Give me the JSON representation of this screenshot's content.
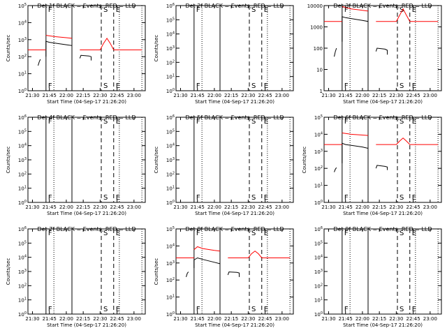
{
  "colors": {
    "events": "#000000",
    "lld": "#ff0000",
    "axes": "#000000",
    "background": "#ffffff"
  },
  "chart_data": [
    {
      "type": "line",
      "title": "Det 1f BLACK = Events, RED = LLD",
      "xlabel": "Start Time (04-Sep-17 21:26:20)",
      "ylabel": "Counts/sec",
      "xlim": [
        "21:26",
        "23:10"
      ],
      "x_ticks": [
        "21:30",
        "21:45",
        "22:00",
        "22:15",
        "22:30",
        "22:45",
        "23:00"
      ],
      "y_scale": "log",
      "ylim": [
        1,
        100000
      ],
      "y_ticks": [
        "10^0",
        "10^1",
        "10^2",
        "10^3",
        "10^4",
        "10^5"
      ],
      "markers": [
        {
          "label": "F",
          "x": "21:42"
        },
        {
          "label": "S",
          "x": "22:31"
        },
        {
          "label": "E",
          "x": "22:42"
        }
      ],
      "series": [
        {
          "name": "Events",
          "color": "#000000",
          "segments": [
            [
              [
                "21:35",
                30
              ],
              [
                "21:36",
                50
              ],
              [
                "21:37",
                70
              ]
            ],
            [
              [
                "21:42",
                100
              ],
              [
                "21:42",
                800
              ],
              [
                "21:45",
                700
              ],
              [
                "22:00",
                500
              ],
              [
                "22:05",
                450
              ],
              [
                "22:05",
                200
              ]
            ],
            [
              [
                "22:12",
                80
              ],
              [
                "22:13",
                120
              ],
              [
                "22:20",
                110
              ],
              [
                "22:22",
                100
              ],
              [
                "22:22",
                60
              ]
            ]
          ]
        },
        {
          "name": "LLD",
          "color": "#ff0000",
          "segments": [
            [
              [
                "21:26",
                250
              ],
              [
                "21:42",
                250
              ]
            ],
            [
              [
                "21:42",
                1800
              ],
              [
                "21:50",
                1500
              ],
              [
                "22:00",
                1300
              ],
              [
                "22:05",
                1200
              ]
            ],
            [
              [
                "22:12",
                250
              ],
              [
                "22:30",
                250
              ],
              [
                "22:33",
                600
              ],
              [
                "22:36",
                1200
              ],
              [
                "22:39",
                600
              ],
              [
                "22:42",
                250
              ],
              [
                "23:07",
                250
              ]
            ]
          ]
        }
      ]
    },
    {
      "type": "line",
      "title": "Det 2f BLACK = Events, RED = LLD",
      "xlabel": "Start Time (04-Sep-17 21:26:20)",
      "ylabel": "Counts/sec",
      "xlim": [
        "21:26",
        "23:10"
      ],
      "x_ticks": [
        "21:30",
        "21:45",
        "22:00",
        "22:15",
        "22:30",
        "22:45",
        "23:00"
      ],
      "y_scale": "log",
      "ylim": [
        1,
        1000000
      ],
      "y_ticks": [
        "10^0",
        "10^1",
        "10^2",
        "10^3",
        "10^4",
        "10^5",
        "10^6"
      ],
      "markers": [
        {
          "label": "F",
          "x": "21:42"
        },
        {
          "label": "S",
          "x": "22:31"
        },
        {
          "label": "E",
          "x": "22:42"
        }
      ],
      "series": []
    },
    {
      "type": "line",
      "title": "Det 3f BLACK = Events, RED = LLD",
      "xlabel": "Start Time (04-Sep-17 21:26:20)",
      "ylabel": "",
      "xlim": [
        "21:26",
        "23:10"
      ],
      "x_ticks": [
        "21:30",
        "21:45",
        "22:00",
        "22:15",
        "22:30",
        "22:45",
        "23:00"
      ],
      "y_scale": "log",
      "ylim": [
        1,
        10000
      ],
      "y_ticks": [
        "1",
        "10",
        "100",
        "1000",
        "10000"
      ],
      "markers": [
        {
          "label": "F",
          "x": "21:42"
        },
        {
          "label": "S",
          "x": "22:31"
        },
        {
          "label": "E",
          "x": "22:42"
        }
      ],
      "series": [
        {
          "name": "Events",
          "color": "#000000",
          "segments": [
            [
              [
                "21:35",
                40
              ],
              [
                "21:36",
                70
              ],
              [
                "21:37",
                100
              ]
            ],
            [
              [
                "21:42",
                200
              ],
              [
                "21:42",
                3000
              ],
              [
                "21:45",
                2700
              ],
              [
                "22:00",
                2000
              ],
              [
                "22:05",
                1800
              ],
              [
                "22:05",
                600
              ]
            ],
            [
              [
                "22:12",
                70
              ],
              [
                "22:13",
                100
              ],
              [
                "22:20",
                90
              ],
              [
                "22:22",
                80
              ],
              [
                "22:22",
                50
              ]
            ]
          ]
        },
        {
          "name": "LLD",
          "color": "#ff0000",
          "segments": [
            [
              [
                "21:26",
                1800
              ],
              [
                "21:42",
                1800
              ]
            ],
            [
              [
                "21:42",
                9000
              ],
              [
                "21:50",
                7000
              ],
              [
                "22:00",
                6000
              ],
              [
                "22:05",
                5500
              ]
            ],
            [
              [
                "22:12",
                1800
              ],
              [
                "22:30",
                1800
              ],
              [
                "22:33",
                3500
              ],
              [
                "22:36",
                7000
              ],
              [
                "22:39",
                3500
              ],
              [
                "22:42",
                1800
              ],
              [
                "23:07",
                1800
              ]
            ]
          ]
        }
      ]
    },
    {
      "type": "line",
      "title": "Det 4f BLACK = Events, RED = LLD",
      "xlabel": "Start Time (04-Sep-17 21:26:20)",
      "ylabel": "Counts/sec",
      "xlim": [
        "21:26",
        "23:10"
      ],
      "x_ticks": [
        "21:30",
        "21:45",
        "22:00",
        "22:15",
        "22:30",
        "22:45",
        "23:00"
      ],
      "y_scale": "log",
      "ylim": [
        1,
        1000000
      ],
      "y_ticks": [
        "10^0",
        "10^1",
        "10^2",
        "10^3",
        "10^4",
        "10^5",
        "10^6"
      ],
      "markers": [
        {
          "label": "F",
          "x": "21:42"
        },
        {
          "label": "S",
          "x": "22:31"
        },
        {
          "label": "E",
          "x": "22:42"
        }
      ],
      "series": []
    },
    {
      "type": "line",
      "title": "Det 5f BLACK = Events, RED = LLD",
      "xlabel": "Start Time (04-Sep-17 21:26:20)",
      "ylabel": "Counts/sec",
      "xlim": [
        "21:26",
        "23:10"
      ],
      "x_ticks": [
        "21:30",
        "21:45",
        "22:00",
        "22:15",
        "22:30",
        "22:45",
        "23:00"
      ],
      "y_scale": "log",
      "ylim": [
        1,
        1000000
      ],
      "y_ticks": [
        "10^0",
        "10^1",
        "10^2",
        "10^3",
        "10^4",
        "10^5",
        "10^6"
      ],
      "markers": [
        {
          "label": "F",
          "x": "21:42"
        },
        {
          "label": "S",
          "x": "22:31"
        },
        {
          "label": "E",
          "x": "22:42"
        }
      ],
      "series": []
    },
    {
      "type": "line",
      "title": "Det 6f BLACK = Events, RED = LLD",
      "xlabel": "Start Time (04-Sep-17 21:26:20)",
      "ylabel": "Counts/sec",
      "xlim": [
        "21:26",
        "23:10"
      ],
      "x_ticks": [
        "21:30",
        "21:45",
        "22:00",
        "22:15",
        "22:30",
        "22:45",
        "23:00"
      ],
      "y_scale": "log",
      "ylim": [
        1,
        100000
      ],
      "y_ticks": [
        "10^0",
        "10^1",
        "10^2",
        "10^3",
        "10^4",
        "10^5"
      ],
      "markers": [
        {
          "label": "F",
          "x": "21:42"
        },
        {
          "label": "S",
          "x": "22:31"
        },
        {
          "label": "E",
          "x": "22:42"
        }
      ],
      "series": [
        {
          "name": "Events",
          "color": "#000000",
          "segments": [
            [
              [
                "21:35",
                60
              ],
              [
                "21:36",
                90
              ],
              [
                "21:37",
                110
              ]
            ],
            [
              [
                "21:42",
                200
              ],
              [
                "21:42",
                3000
              ],
              [
                "21:45",
                2500
              ],
              [
                "22:00",
                1800
              ],
              [
                "22:05",
                1500
              ],
              [
                "22:05",
                500
              ]
            ],
            [
              [
                "22:12",
                100
              ],
              [
                "22:13",
                150
              ],
              [
                "22:20",
                130
              ],
              [
                "22:22",
                120
              ],
              [
                "22:22",
                80
              ]
            ]
          ]
        },
        {
          "name": "LLD",
          "color": "#ff0000",
          "segments": [
            [
              [
                "21:26",
                2500
              ],
              [
                "21:42",
                2500
              ]
            ],
            [
              [
                "21:42",
                12000
              ],
              [
                "21:50",
                10000
              ],
              [
                "22:00",
                9000
              ],
              [
                "22:05",
                8500
              ]
            ],
            [
              [
                "22:12",
                2500
              ],
              [
                "22:30",
                2500
              ],
              [
                "22:33",
                4000
              ],
              [
                "22:36",
                6000
              ],
              [
                "22:39",
                4000
              ],
              [
                "22:42",
                2500
              ],
              [
                "23:07",
                2500
              ]
            ]
          ]
        }
      ]
    },
    {
      "type": "line",
      "title": "Det 7f BLACK = Events, RED = LLD",
      "xlabel": "Start Time (04-Sep-17 21:26:20)",
      "ylabel": "Counts/sec",
      "xlim": [
        "21:26",
        "23:10"
      ],
      "x_ticks": [
        "21:30",
        "21:45",
        "22:00",
        "22:15",
        "22:30",
        "22:45",
        "23:00"
      ],
      "y_scale": "log",
      "ylim": [
        1,
        1000000
      ],
      "y_ticks": [
        "10^0",
        "10^1",
        "10^2",
        "10^3",
        "10^4",
        "10^5",
        "10^6"
      ],
      "markers": [
        {
          "label": "F",
          "x": "21:42"
        },
        {
          "label": "S",
          "x": "22:31"
        },
        {
          "label": "E",
          "x": "22:42"
        }
      ],
      "series": []
    },
    {
      "type": "line",
      "title": "Det 8f BLACK = Events, RED = LLD",
      "xlabel": "Start Time (04-Sep-17 21:26:20)",
      "ylabel": "Counts/sec",
      "xlim": [
        "21:26",
        "23:10"
      ],
      "x_ticks": [
        "21:30",
        "21:45",
        "22:00",
        "22:15",
        "22:30",
        "22:45",
        "23:00"
      ],
      "y_scale": "log",
      "ylim": [
        1,
        100000
      ],
      "y_ticks": [
        "10^0",
        "10^1",
        "10^2",
        "10^3",
        "10^4",
        "10^5"
      ],
      "markers": [
        {
          "label": "F",
          "x": "21:42"
        },
        {
          "label": "S",
          "x": "22:31"
        },
        {
          "label": "E",
          "x": "22:42"
        }
      ],
      "series": [
        {
          "name": "Events",
          "color": "#000000",
          "segments": [
            [
              [
                "21:35",
                150
              ],
              [
                "21:36",
                250
              ],
              [
                "21:37",
                300
              ]
            ],
            [
              [
                "21:42",
                500
              ],
              [
                "21:42",
                1500
              ],
              [
                "21:45",
                2000
              ],
              [
                "21:50",
                1600
              ],
              [
                "22:00",
                1100
              ],
              [
                "22:05",
                900
              ]
            ],
            [
              [
                "22:12",
                200
              ],
              [
                "22:13",
                300
              ],
              [
                "22:20",
                280
              ],
              [
                "22:22",
                260
              ],
              [
                "22:22",
                150
              ]
            ]
          ]
        },
        {
          "name": "LLD",
          "color": "#ff0000",
          "segments": [
            [
              [
                "21:26",
                2000
              ],
              [
                "21:42",
                2000
              ]
            ],
            [
              [
                "21:42",
                6000
              ],
              [
                "21:45",
                9000
              ],
              [
                "21:50",
                7000
              ],
              [
                "22:00",
                5500
              ],
              [
                "22:05",
                5000
              ]
            ],
            [
              [
                "22:12",
                2000
              ],
              [
                "22:30",
                2000
              ],
              [
                "22:33",
                3500
              ],
              [
                "22:36",
                5000
              ],
              [
                "22:39",
                3500
              ],
              [
                "22:42",
                2000
              ],
              [
                "23:07",
                2000
              ]
            ]
          ]
        }
      ]
    },
    {
      "type": "line",
      "title": "Det 9f BLACK = Events, RED = LLD",
      "xlabel": "Start Time (04-Sep-17 21:26:20)",
      "ylabel": "",
      "xlim": [
        "21:26",
        "23:10"
      ],
      "x_ticks": [
        "21:30",
        "21:45",
        "22:00",
        "22:15",
        "22:30",
        "22:45",
        "23:00"
      ],
      "y_scale": "log",
      "ylim": [
        1,
        1000000
      ],
      "y_ticks": [
        "10^0",
        "10^1",
        "10^2",
        "10^3",
        "10^4",
        "10^5",
        "10^6"
      ],
      "markers": [
        {
          "label": "F",
          "x": "21:42"
        },
        {
          "label": "S",
          "x": "22:31"
        },
        {
          "label": "E",
          "x": "22:42"
        }
      ],
      "series": []
    }
  ]
}
